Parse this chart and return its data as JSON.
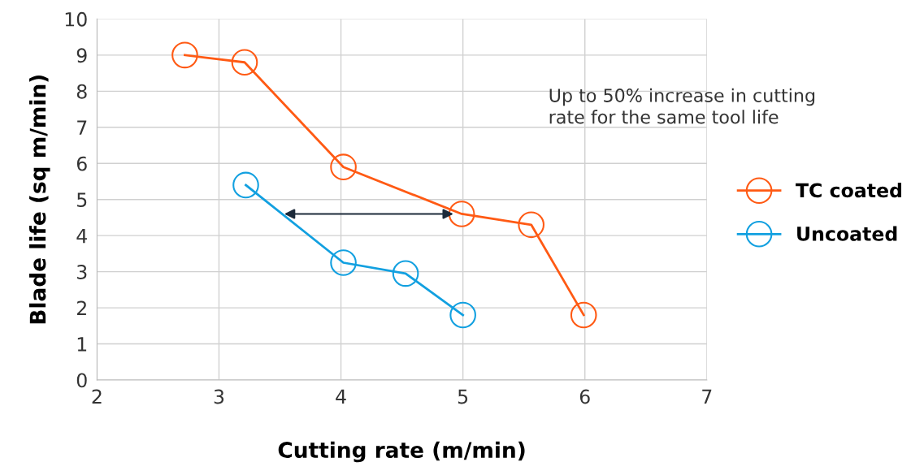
{
  "chart_data": {
    "type": "line",
    "xlabel": "Cutting rate (m/min)",
    "ylabel": "Blade life (sq m/min)",
    "xlim": [
      2,
      7
    ],
    "xticks": [
      2,
      3,
      4,
      5,
      6,
      7
    ],
    "ylim": [
      0,
      10
    ],
    "yticks": [
      0,
      1,
      2,
      3,
      4,
      5,
      6,
      7,
      8,
      9,
      10
    ],
    "grid": true,
    "legend": "right",
    "marker": "circle",
    "line_style": "solid",
    "series": [
      {
        "name": "TC coated",
        "color": "#ff5a14",
        "x": [
          2.72,
          3.21,
          4.02,
          4.99,
          5.56,
          5.99
        ],
        "values": [
          9.0,
          8.8,
          5.9,
          4.6,
          4.3,
          1.8
        ]
      },
      {
        "name": "Uncoated",
        "color": "#12a0e0",
        "x": [
          3.22,
          4.02,
          4.53,
          5.0
        ],
        "values": [
          5.4,
          3.25,
          2.95,
          1.8
        ]
      }
    ],
    "annotations": [
      "Up to 50% increase in cutting\nrate for the same tool life"
    ]
  }
}
